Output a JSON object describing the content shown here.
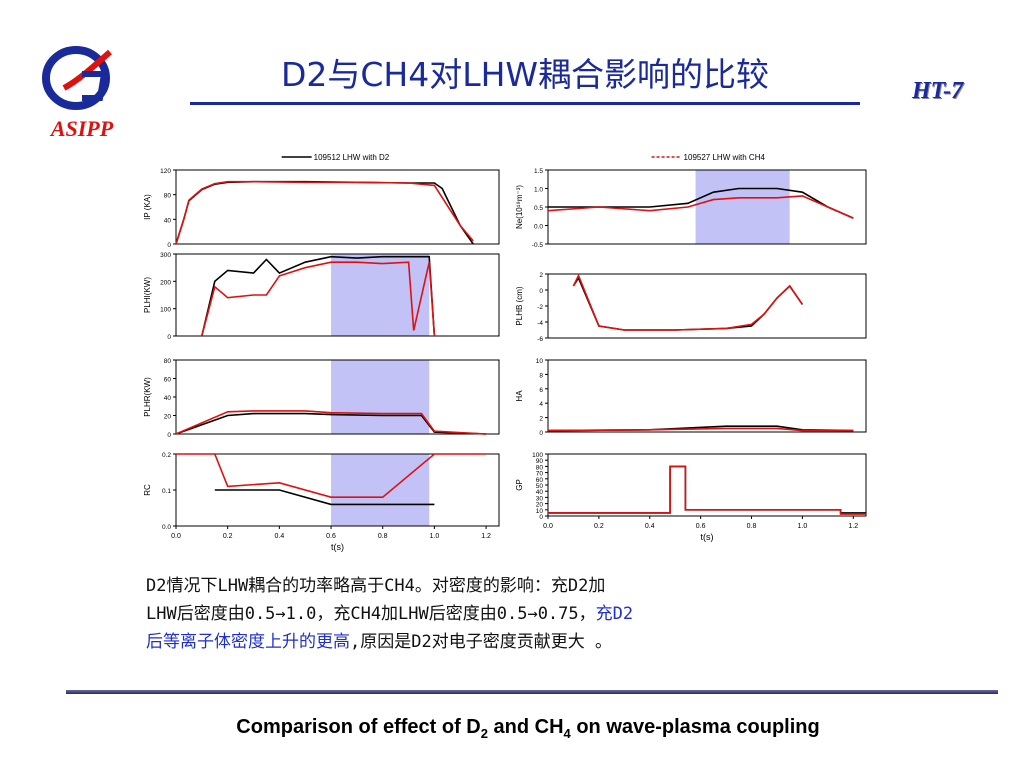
{
  "slide": {
    "title": "D2与CH4对LHW耦合影响的比较",
    "org_label": "HT-7",
    "logo_text": "ASIPP",
    "body": {
      "p1": "D2情况下LHW耦合的功率略高于CH4。对密度的影响：充D2加",
      "p2": "LHW后密度由0.5→1.0，充CH4加LHW后密度由0.5→0.75，",
      "p2_hl": "充D2",
      "p3_hl": "后等离子体密度上升的更高",
      "p3": ",原因是D2对电子密度贡献更大 。"
    },
    "caption": {
      "a": "Comparison of effect of D",
      "sub1": "2",
      "b": " and CH",
      "sub2": "4",
      "c": " on wave-plasma coupling"
    }
  },
  "colors": {
    "title": "#1a2a9a",
    "d2_line": "#000000",
    "ch4_line": "#e01010",
    "highlight": "#9a9af0"
  },
  "chart_data": [
    {
      "type": "line",
      "ylabel": "IP (KA)",
      "ylim": [
        0,
        120
      ],
      "yticks": [
        "0",
        "40",
        "80",
        "120"
      ],
      "legend": "109512 LHW with D2",
      "legend_sub": "2",
      "series": [
        {
          "name": "109512 LHW with D2",
          "x": [
            0,
            0.03,
            0.05,
            0.1,
            0.15,
            0.2,
            0.3,
            0.5,
            0.7,
            0.9,
            1.0,
            1.03,
            1.1,
            1.15
          ],
          "y": [
            0,
            40,
            70,
            88,
            97,
            100,
            101,
            101,
            100,
            99,
            99,
            90,
            30,
            0
          ]
        },
        {
          "name": "109527 LHW with CH4",
          "x": [
            0,
            0.03,
            0.05,
            0.1,
            0.15,
            0.2,
            0.3,
            0.5,
            0.7,
            0.9,
            1.0,
            1.1,
            1.15
          ],
          "y": [
            0,
            40,
            71,
            89,
            98,
            101,
            101,
            100,
            100,
            99,
            95,
            30,
            5
          ]
        }
      ]
    },
    {
      "type": "line",
      "ylabel": "PLHI(KW)",
      "ylim": [
        0,
        300
      ],
      "yticks": [
        "0",
        "100",
        "200",
        "300"
      ],
      "highlight": [
        0.6,
        0.98
      ],
      "series": [
        {
          "x": [
            0.1,
            0.15,
            0.2,
            0.3,
            0.35,
            0.4,
            0.5,
            0.6,
            0.7,
            0.8,
            0.9,
            0.95,
            0.98,
            1.0
          ],
          "y": [
            0,
            200,
            240,
            230,
            280,
            230,
            270,
            290,
            285,
            290,
            290,
            290,
            290,
            0
          ]
        },
        {
          "x": [
            0.1,
            0.15,
            0.2,
            0.3,
            0.35,
            0.4,
            0.5,
            0.6,
            0.7,
            0.8,
            0.9,
            0.92,
            0.98,
            1.0
          ],
          "y": [
            0,
            180,
            140,
            150,
            150,
            220,
            250,
            270,
            270,
            265,
            270,
            20,
            270,
            0
          ]
        }
      ]
    },
    {
      "type": "line",
      "ylabel": "PLHR(KW)",
      "ylim": [
        0,
        80
      ],
      "yticks": [
        "0",
        "20",
        "40",
        "60",
        "80"
      ],
      "highlight": [
        0.6,
        0.98
      ],
      "series": [
        {
          "x": [
            0,
            0.2,
            0.3,
            0.5,
            0.6,
            0.8,
            0.95,
            1.0,
            1.2
          ],
          "y": [
            0,
            20,
            22,
            22,
            21,
            20,
            20,
            2,
            0
          ]
        },
        {
          "x": [
            0,
            0.2,
            0.3,
            0.5,
            0.6,
            0.8,
            0.95,
            1.0,
            1.2
          ],
          "y": [
            0,
            24,
            25,
            25,
            23,
            22,
            22,
            3,
            0
          ]
        }
      ]
    },
    {
      "type": "line",
      "ylabel": "RC",
      "xlabel": "t(s)",
      "ylim": [
        0,
        0.2
      ],
      "yticks": [
        "0.0",
        "0.1",
        "0.2"
      ],
      "xticks": [
        "0.0",
        "0.2",
        "0.4",
        "0.6",
        "0.8",
        "1.0",
        "1.2"
      ],
      "highlight": [
        0.6,
        0.98
      ],
      "series": [
        {
          "x": [
            0.15,
            0.2,
            0.4,
            0.6,
            0.8,
            1.0
          ],
          "y": [
            0.1,
            0.1,
            0.1,
            0.06,
            0.06,
            0.06
          ]
        },
        {
          "x": [
            0,
            0.15,
            0.2,
            0.4,
            0.6,
            0.8,
            1.0,
            1.2
          ],
          "y": [
            0.2,
            0.2,
            0.11,
            0.12,
            0.08,
            0.08,
            0.2,
            0.2
          ]
        }
      ]
    },
    {
      "type": "line",
      "ylabel": "Ne(10¹⁹m⁻³)",
      "ylim": [
        -0.5,
        1.5
      ],
      "yticks": [
        "-0.5",
        "0.0",
        "0.5",
        "1.0",
        "1.5"
      ],
      "legend": "109527 LHW with CH4",
      "legend_sub": "4",
      "highlight": [
        0.58,
        0.95
      ],
      "series": [
        {
          "x": [
            0,
            0.2,
            0.4,
            0.55,
            0.65,
            0.75,
            0.9,
            1.0,
            1.1,
            1.2
          ],
          "y": [
            0.5,
            0.5,
            0.5,
            0.6,
            0.9,
            1.0,
            1.0,
            0.9,
            0.5,
            0.2
          ]
        },
        {
          "x": [
            0,
            0.2,
            0.4,
            0.55,
            0.65,
            0.75,
            0.9,
            1.0,
            1.1,
            1.2
          ],
          "y": [
            0.4,
            0.5,
            0.4,
            0.5,
            0.7,
            0.75,
            0.75,
            0.8,
            0.5,
            0.2
          ]
        }
      ]
    },
    {
      "type": "line",
      "ylabel": "PLHB (cm)",
      "ylim": [
        -6,
        2
      ],
      "yticks": [
        "-6",
        "-4",
        "-2",
        "0",
        "2"
      ],
      "series": [
        {
          "x": [
            0.1,
            0.12,
            0.2,
            0.3,
            0.5,
            0.7,
            0.8,
            0.85,
            0.9,
            0.95,
            1.0
          ],
          "y": [
            0.5,
            1.5,
            -4.5,
            -5,
            -5,
            -4.8,
            -4.5,
            -3,
            -1,
            0.5,
            -1.8
          ]
        },
        {
          "x": [
            0.1,
            0.12,
            0.2,
            0.3,
            0.5,
            0.7,
            0.8,
            0.85,
            0.9,
            0.95,
            1.0
          ],
          "y": [
            0.5,
            1.8,
            -4.5,
            -5,
            -5,
            -4.8,
            -4.3,
            -3,
            -1,
            0.5,
            -1.8
          ]
        }
      ]
    },
    {
      "type": "line",
      "ylabel": "HA",
      "ylim": [
        0,
        10
      ],
      "yticks": [
        "0",
        "2",
        "4",
        "6",
        "8",
        "10"
      ],
      "series": [
        {
          "x": [
            0,
            0.4,
            0.7,
            0.9,
            1.0,
            1.2
          ],
          "y": [
            0.2,
            0.3,
            0.8,
            0.8,
            0.3,
            0.2
          ]
        },
        {
          "x": [
            0,
            0.4,
            0.7,
            0.9,
            1.0,
            1.2
          ],
          "y": [
            0.2,
            0.3,
            0.5,
            0.5,
            0.2,
            0.2
          ]
        }
      ]
    },
    {
      "type": "line",
      "ylabel": "GP",
      "xlabel": "t(s)",
      "ylim": [
        0,
        100
      ],
      "yticks": [
        "0",
        "10",
        "20",
        "30",
        "40",
        "50",
        "60",
        "70",
        "80",
        "90",
        "100"
      ],
      "xticks": [
        "0.0",
        "0.2",
        "0.4",
        "0.6",
        "0.8",
        "1.0",
        "1.2"
      ],
      "series": [
        {
          "x": [
            0,
            0.48,
            0.48,
            0.54,
            0.54,
            1.0,
            1.15,
            1.15,
            1.25
          ],
          "y": [
            5,
            5,
            80,
            80,
            10,
            10,
            10,
            5,
            5
          ]
        },
        {
          "x": [
            0,
            0.48,
            0.48,
            0.54,
            0.54,
            1.0,
            1.15,
            1.15,
            1.25
          ],
          "y": [
            5,
            5,
            80,
            80,
            10,
            10,
            10,
            3,
            3
          ]
        }
      ]
    }
  ]
}
